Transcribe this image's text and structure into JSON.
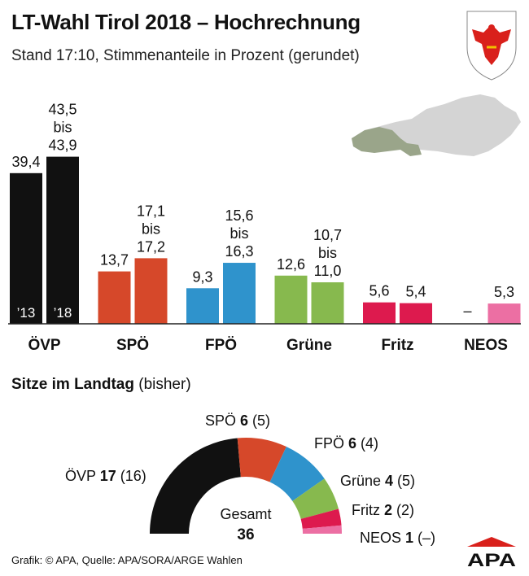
{
  "title": "LT-Wahl Tirol 2018 – Hochrechnung",
  "subtitle": "Stand 17:10, Stimmenanteile in Prozent (gerundet)",
  "footer": "Grafik: © APA, Quelle: APA/SORA/ARGE Wahlen",
  "logo_text": "APA",
  "seats_heading": {
    "bold": "Sitze im Landtag",
    "rest": " (bisher)"
  },
  "colors": {
    "ÖVP": "#111111",
    "SPÖ": "#d6482a",
    "FPÖ": "#2f93cc",
    "Grüne": "#87b94e",
    "Fritz": "#dd1a4e",
    "NEOS": "#ec6fa3",
    "map": "#c8c8c8",
    "tirol": "#9aa58a",
    "logo_red": "#d9201b"
  },
  "chart_data": [
    {
      "type": "bar",
      "categories": [
        "ÖVP",
        "SPÖ",
        "FPÖ",
        "Grüne",
        "Fritz",
        "NEOS"
      ],
      "series": [
        {
          "name": "’13",
          "values": [
            39.4,
            13.7,
            9.3,
            12.6,
            5.6,
            null
          ]
        },
        {
          "name": "’18",
          "values": [
            43.7,
            17.15,
            15.95,
            10.85,
            5.4,
            5.3
          ]
        }
      ],
      "value_labels": {
        "’13": [
          "39,4",
          "13,7",
          "9,3",
          "12,6",
          "5,6",
          "–"
        ],
        "’18": [
          "43,5\nbis\n43,9",
          "17,1\nbis\n17,2",
          "15,6\nbis\n16,3",
          "10,7\nbis\n11,0",
          "5,4",
          "5,3"
        ]
      },
      "year_labels": [
        "’13",
        "’18"
      ],
      "ylim": [
        0,
        45
      ]
    },
    {
      "type": "pie",
      "subtype": "half-donut",
      "categories": [
        "ÖVP",
        "SPÖ",
        "FPÖ",
        "Grüne",
        "Fritz",
        "NEOS"
      ],
      "values": [
        17,
        6,
        6,
        4,
        2,
        1
      ],
      "previous": [
        "16",
        "5",
        "4",
        "5",
        "2",
        "–"
      ],
      "total_label": "Gesamt",
      "total": 36
    }
  ]
}
